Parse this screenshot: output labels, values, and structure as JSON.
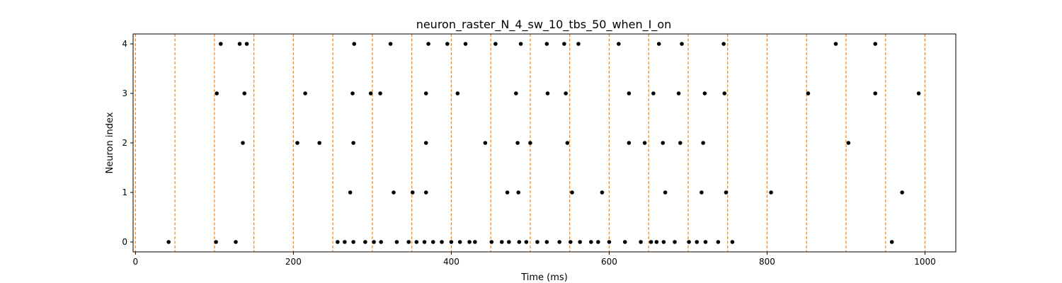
{
  "chart_data": {
    "type": "scatter",
    "title": "neuron_raster_N_4_sw_10_tbs_50_when_I_on",
    "xlabel": "Time (ms)",
    "ylabel": "Neuron index",
    "xlim": [
      -3,
      1039
    ],
    "ylim": [
      -0.2,
      4.2
    ],
    "xticks": [
      0,
      200,
      400,
      600,
      800,
      1000
    ],
    "yticks": [
      0,
      1,
      2,
      3,
      4
    ],
    "xtick_labels": [
      "0",
      "200",
      "400",
      "600",
      "800",
      "1000"
    ],
    "ytick_labels": [
      "0",
      "1",
      "2",
      "3",
      "4"
    ],
    "grid": false,
    "marker_color": "#000000",
    "vline_color": "#ff7f0e",
    "vlines": [
      0,
      50,
      100,
      150,
      200,
      250,
      300,
      350,
      400,
      450,
      500,
      550,
      600,
      650,
      700,
      750,
      800,
      850,
      900,
      950,
      1000
    ],
    "series": [
      {
        "neuron": 0,
        "spikes": [
          42,
          102,
          127,
          256,
          265,
          276,
          291,
          302,
          311,
          331,
          346,
          356,
          366,
          377,
          388,
          400,
          411,
          423,
          430,
          451,
          464,
          473,
          486,
          495,
          509,
          521,
          537,
          551,
          563,
          577,
          586,
          600,
          620,
          640,
          653,
          660,
          669,
          683,
          701,
          711,
          722,
          738,
          756,
          958
        ]
      },
      {
        "neuron": 1,
        "spikes": [
          272,
          327,
          351,
          368,
          471,
          485,
          553,
          591,
          671,
          717,
          748,
          805,
          971
        ]
      },
      {
        "neuron": 2,
        "spikes": [
          136,
          205,
          233,
          276,
          368,
          443,
          484,
          500,
          547,
          625,
          645,
          668,
          690,
          719,
          903
        ]
      },
      {
        "neuron": 3,
        "spikes": [
          103,
          138,
          215,
          275,
          298,
          310,
          368,
          408,
          482,
          522,
          545,
          625,
          656,
          688,
          721,
          746,
          852,
          937,
          992
        ]
      },
      {
        "neuron": 4,
        "spikes": [
          108,
          132,
          141,
          277,
          323,
          371,
          395,
          418,
          456,
          488,
          521,
          543,
          561,
          612,
          663,
          692,
          745,
          887,
          937
        ]
      }
    ]
  }
}
